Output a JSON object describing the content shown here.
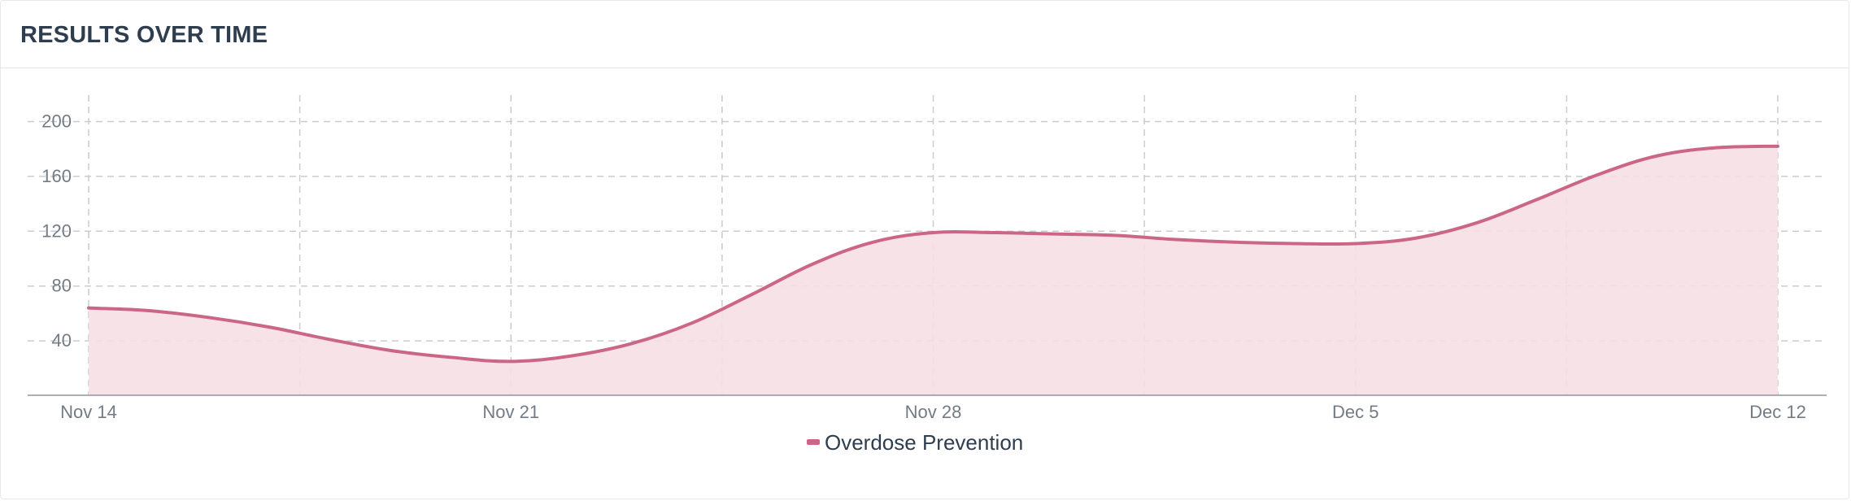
{
  "header": {
    "title": "RESULTS OVER TIME"
  },
  "chart_data": {
    "type": "area",
    "x": [
      "Nov 14",
      "Nov 15",
      "Nov 16",
      "Nov 17",
      "Nov 18",
      "Nov 19",
      "Nov 20",
      "Nov 21",
      "Nov 22",
      "Nov 23",
      "Nov 24",
      "Nov 25",
      "Nov 26",
      "Nov 27",
      "Nov 28",
      "Nov 29",
      "Nov 30",
      "Dec 1",
      "Dec 2",
      "Dec 3",
      "Dec 4",
      "Dec 5",
      "Dec 6",
      "Dec 7",
      "Dec 8",
      "Dec 9",
      "Dec 10",
      "Dec 11",
      "Dec 12"
    ],
    "xticks": [
      "Nov 14",
      "Nov 21",
      "Nov 28",
      "Dec 5",
      "Dec 12"
    ],
    "series": [
      {
        "name": "Overdose Prevention",
        "color": "#cc6686",
        "fill": "#f6dfe5",
        "values": [
          64,
          62,
          57,
          50,
          41,
          33,
          28,
          25,
          29,
          38,
          53,
          74,
          96,
          112,
          119,
          119,
          118,
          117,
          114,
          112,
          111,
          111,
          115,
          126,
          143,
          161,
          175,
          181,
          182
        ]
      }
    ],
    "yticks": [
      40,
      80,
      120,
      160,
      200
    ],
    "ylim": [
      0,
      200
    ],
    "grid": true,
    "legend": "bottom-center",
    "title": "",
    "xlabel": "",
    "ylabel": ""
  }
}
